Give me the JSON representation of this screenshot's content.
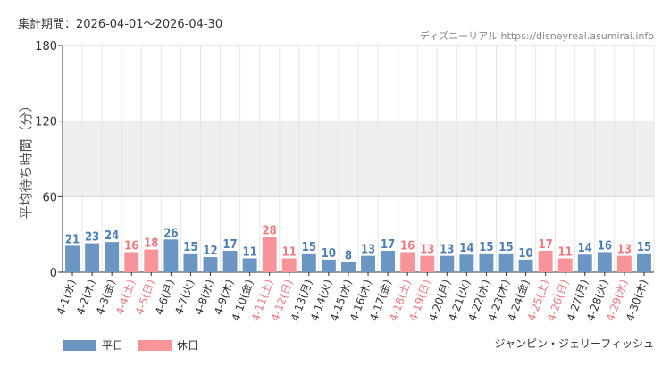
{
  "header": {
    "period_label": "集計期間：2026-04-01～2026-04-30",
    "credit": "ディズニーリアル https://disneyreal.asumirai.info",
    "attraction": "ジャンピン・ジェリーフィッシュ"
  },
  "legend": {
    "weekday_label": "平日",
    "holiday_label": "休日"
  },
  "colors": {
    "weekday": "#6b96c3",
    "holiday": "#f7949a",
    "weekday_text": "#4a7fb5",
    "holiday_text": "#f0797f",
    "band": "#efefef"
  },
  "chart_data": {
    "type": "bar",
    "ylabel": "平均待ち時間（分）",
    "ylim": [
      0,
      180
    ],
    "yticks": [
      0,
      60,
      120,
      180
    ],
    "shaded_band": [
      60,
      120
    ],
    "categories": [
      "4-1(水)",
      "4-2(木)",
      "4-3(金)",
      "4-4(土)",
      "4-5(日)",
      "4-6(月)",
      "4-7(火)",
      "4-8(水)",
      "4-9(木)",
      "4-10(金)",
      "4-11(土)",
      "4-12(日)",
      "4-13(月)",
      "4-14(火)",
      "4-15(水)",
      "4-16(木)",
      "4-17(金)",
      "4-18(土)",
      "4-19(日)",
      "4-20(月)",
      "4-21(火)",
      "4-22(水)",
      "4-23(木)",
      "4-24(金)",
      "4-25(土)",
      "4-26(日)",
      "4-27(月)",
      "4-28(火)",
      "4-29(水)",
      "4-30(木)"
    ],
    "values": [
      21,
      23,
      24,
      16,
      18,
      26,
      15,
      12,
      17,
      11,
      28,
      11,
      15,
      10,
      8,
      13,
      17,
      16,
      13,
      13,
      14,
      15,
      15,
      10,
      17,
      11,
      14,
      16,
      13,
      15
    ],
    "day_type": [
      "weekday",
      "weekday",
      "weekday",
      "holiday",
      "holiday",
      "weekday",
      "weekday",
      "weekday",
      "weekday",
      "weekday",
      "holiday",
      "holiday",
      "weekday",
      "weekday",
      "weekday",
      "weekday",
      "weekday",
      "holiday",
      "holiday",
      "weekday",
      "weekday",
      "weekday",
      "weekday",
      "weekday",
      "holiday",
      "holiday",
      "weekday",
      "weekday",
      "holiday",
      "weekday"
    ]
  }
}
